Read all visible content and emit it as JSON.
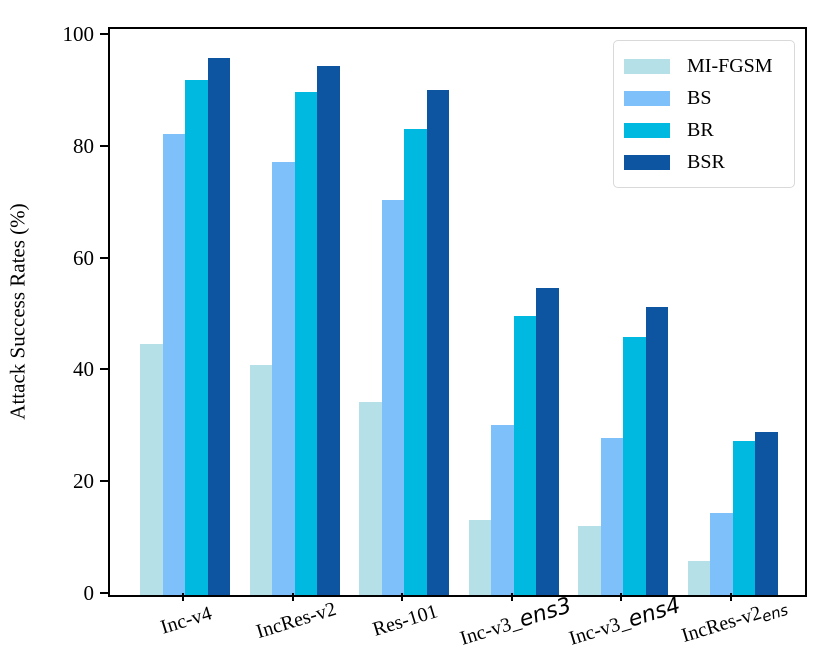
{
  "chart_data": {
    "type": "bar",
    "title": "",
    "xlabel": "",
    "ylabel": "Attack Success Rates (%)",
    "ylim": [
      0,
      100
    ],
    "yticks": [
      0,
      20,
      40,
      60,
      80,
      100
    ],
    "grid": false,
    "legend_position": "upper right",
    "categories": [
      "Inc-v4",
      "IncRes-v2",
      "Res-101",
      "Inc-v3_ens3",
      "Inc-v3_ens4",
      "IncRes-v2_ens"
    ],
    "category_label_parts": [
      [
        {
          "t": "Inc-v4",
          "s": "serif"
        }
      ],
      [
        {
          "t": "IncRes-v2",
          "s": "serif"
        }
      ],
      [
        {
          "t": "Res-101",
          "s": "serif"
        }
      ],
      [
        {
          "t": "Inc-v3_",
          "s": "serif"
        },
        {
          "t": "ens3",
          "s": "math"
        }
      ],
      [
        {
          "t": "Inc-v3_",
          "s": "serif"
        },
        {
          "t": "ens4",
          "s": "math"
        }
      ],
      [
        {
          "t": "IncRes-v2",
          "s": "serif"
        },
        {
          "t": "ens",
          "s": "mathsub"
        }
      ]
    ],
    "series": [
      {
        "name": "MI-FGSM",
        "color": "#b5e0e8",
        "values": [
          44.9,
          41.2,
          34.5,
          13.4,
          12.3,
          6.0
        ]
      },
      {
        "name": "BS",
        "color": "#7ec1fa",
        "values": [
          82.4,
          77.5,
          70.6,
          30.4,
          28.1,
          14.7
        ]
      },
      {
        "name": "BR",
        "color": "#00b9e0",
        "values": [
          92.1,
          89.9,
          83.4,
          49.9,
          46.1,
          27.5
        ]
      },
      {
        "name": "BSR",
        "color": "#0d55a0",
        "values": [
          96.1,
          94.6,
          90.4,
          54.9,
          51.5,
          29.1
        ]
      }
    ],
    "colors": {
      "axis": "#000000",
      "legend_border": "#d9d9d9",
      "background": "#ffffff"
    }
  }
}
